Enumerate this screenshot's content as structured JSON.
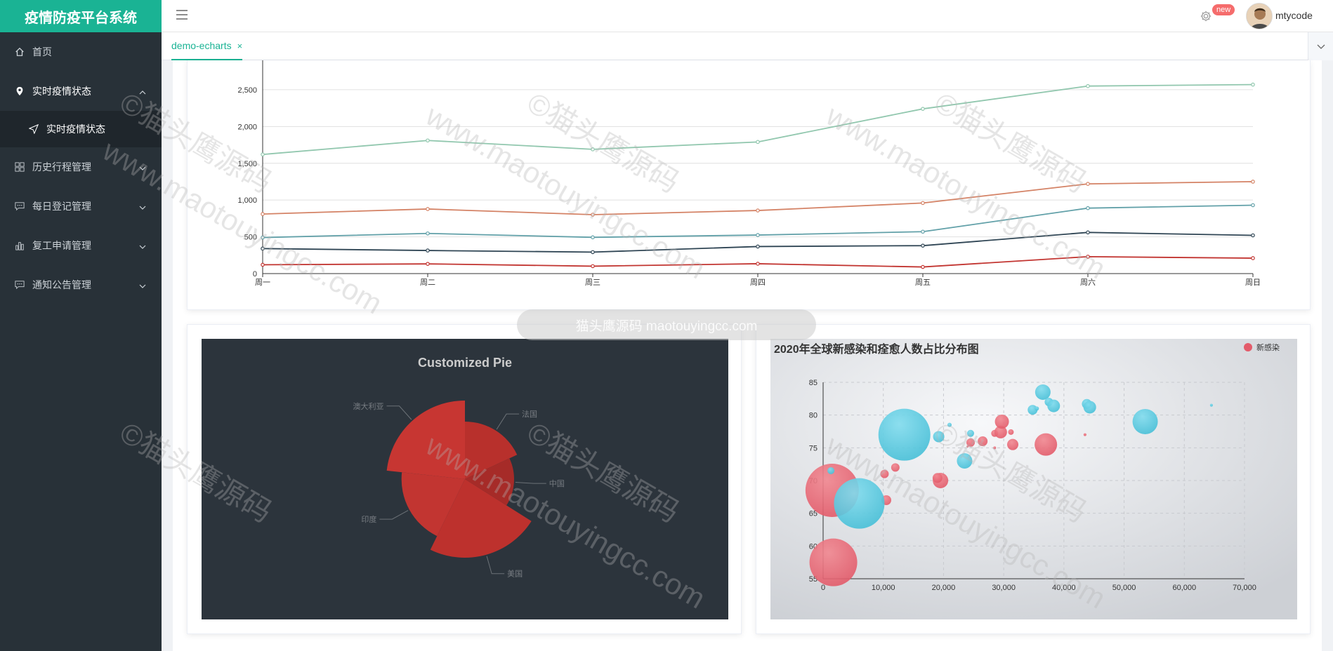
{
  "app": {
    "title": "疫情防疫平台系统"
  },
  "sidebar": {
    "items": [
      {
        "label": "首页",
        "icon": "home-icon"
      },
      {
        "label": "实时疫情状态",
        "icon": "location-icon"
      },
      {
        "label": "实时疫情状态",
        "icon": "send-icon"
      },
      {
        "label": "历史行程管理",
        "icon": "grid-icon"
      },
      {
        "label": "每日登记管理",
        "icon": "chat-icon"
      },
      {
        "label": "复工申请管理",
        "icon": "bar-chart-icon"
      },
      {
        "label": "通知公告管理",
        "icon": "chat-icon"
      }
    ]
  },
  "header": {
    "badge": "new",
    "username": "mtycode"
  },
  "tabs": [
    {
      "label": "demo-echarts",
      "close": "×"
    }
  ],
  "watermark": {
    "text": "www.maotouyingcc.com",
    "text2": "©猫头鹰源码",
    "banner": "猫头鹰源码 maotouyingcc.com"
  },
  "chart_data": [
    {
      "type": "line",
      "categories": [
        "周一",
        "周二",
        "周三",
        "周四",
        "周五",
        "周六",
        "周日"
      ],
      "yticks": [
        "0",
        "500",
        "1,000",
        "1,500",
        "2,000",
        "2,500"
      ],
      "ylim": [
        0,
        2900
      ],
      "series": [
        {
          "values": [
            120,
            132,
            101,
            134,
            90,
            230,
            210
          ],
          "color": "#c23531"
        },
        {
          "values": [
            340,
            314,
            292,
            368,
            380,
            560,
            520
          ],
          "color": "#2f4554"
        },
        {
          "values": [
            490,
            546,
            493,
            524,
            570,
            890,
            930
          ],
          "color": "#61a0a8"
        },
        {
          "values": [
            810,
            878,
            801,
            858,
            960,
            1220,
            1250
          ],
          "color": "#d48265"
        },
        {
          "values": [
            1620,
            1810,
            1690,
            1790,
            2240,
            2550,
            2570
          ],
          "color": "#91c7ae"
        }
      ]
    },
    {
      "type": "pie",
      "title": "Customized Pie",
      "slices": [
        {
          "name": "法国",
          "value": 310
        },
        {
          "name": "中国",
          "value": 274
        },
        {
          "name": "美国",
          "value": 400
        },
        {
          "name": "印度",
          "value": 335
        },
        {
          "name": "澳大利亚",
          "value": 400
        }
      ],
      "roseType": "radius",
      "background": "#2c343c",
      "color": "#c23531"
    },
    {
      "type": "scatter",
      "title": "2020年全球新感染和痊愈人数占比分布图",
      "legend": [
        "新感染"
      ],
      "xticks": [
        "0",
        "10,000",
        "20,000",
        "30,000",
        "40,000",
        "50,000",
        "60,000",
        "70,000"
      ],
      "yticks": [
        "55",
        "60",
        "65",
        "70",
        "75",
        "80",
        "85"
      ],
      "xlim": [
        0,
        70000
      ],
      "ylim": [
        55,
        85
      ],
      "series": [
        {
          "color": "#e35b6a",
          "points": [
            [
              1500,
              68.5,
              38
            ],
            [
              1700,
              57.5,
              34
            ],
            [
              10200,
              71,
              6
            ],
            [
              12000,
              72,
              6
            ],
            [
              10500,
              67,
              7
            ],
            [
              19500,
              70,
              11
            ],
            [
              19000,
              70.4,
              7
            ],
            [
              24500,
              75.8,
              6
            ],
            [
              26500,
              76,
              7
            ],
            [
              28500,
              77.2,
              5
            ],
            [
              29500,
              77.4,
              9
            ],
            [
              29700,
              79,
              10
            ],
            [
              31200,
              77.4,
              4
            ],
            [
              31500,
              75.5,
              8
            ],
            [
              37000,
              75.5,
              16
            ],
            [
              43500,
              77,
              2
            ],
            [
              24000,
              75.2,
              1.5
            ],
            [
              28500,
              75,
              2
            ]
          ]
        },
        {
          "color": "#48c0d8",
          "points": [
            [
              1300,
              71.5,
              5
            ],
            [
              6000,
              66.5,
              36
            ],
            [
              13500,
              77,
              37
            ],
            [
              19200,
              76.7,
              8
            ],
            [
              21000,
              78.5,
              3
            ],
            [
              23500,
              73,
              11
            ],
            [
              24500,
              77.2,
              5
            ],
            [
              34800,
              80.8,
              7
            ],
            [
              36500,
              83.5,
              11
            ],
            [
              37500,
              82,
              6
            ],
            [
              38300,
              81.4,
              9
            ],
            [
              43800,
              81.7,
              7
            ],
            [
              44300,
              81.2,
              9
            ],
            [
              53500,
              79,
              18
            ],
            [
              64500,
              81.5,
              2
            ],
            [
              35500,
              81,
              3
            ]
          ]
        }
      ]
    }
  ]
}
